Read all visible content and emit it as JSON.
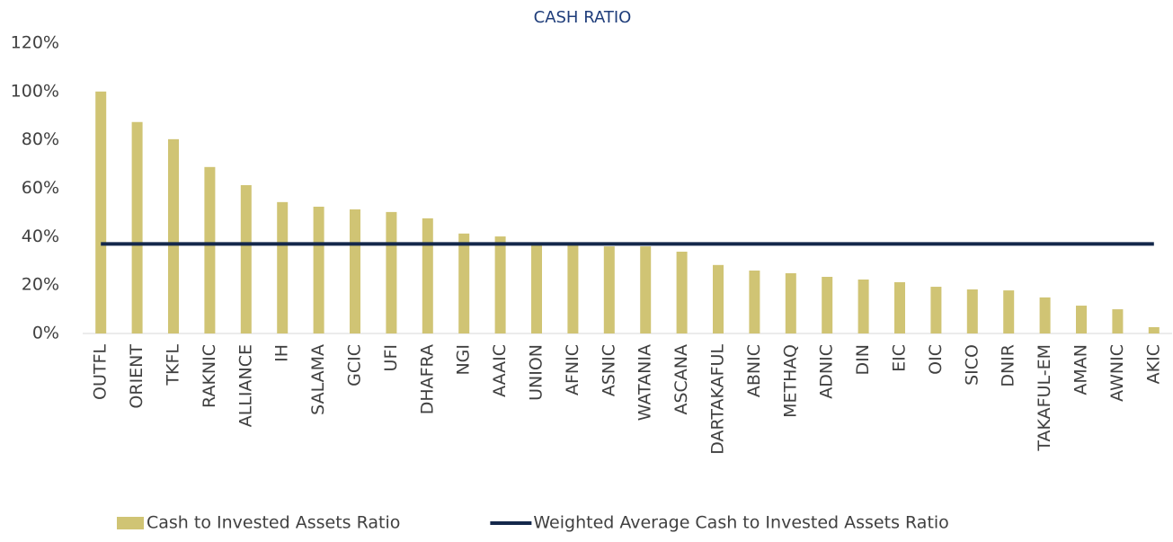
{
  "chart_data": {
    "type": "bar",
    "title": "CASH RATIO",
    "categories": [
      "OUTFL",
      "ORIENT",
      "TKFL",
      "RAKNIC",
      "ALLIANCE",
      "IH",
      "SALAMA",
      "GCIC",
      "UFI",
      "DHAFRA",
      "NGI",
      "AAAIC",
      "UNION",
      "AFNIC",
      "ASNIC",
      "WATANIA",
      "ASCANA",
      "DARTAKAFUL",
      "ABNIC",
      "METHAQ",
      "ADNIC",
      "DIN",
      "EIC",
      "OIC",
      "SICO",
      "DNIR",
      "TAKAFUL-EM",
      "AMAN",
      "AWNIC",
      "AKIC"
    ],
    "series": [
      {
        "name": "Cash to Invested Assets Ratio",
        "type": "bar",
        "color": "#d0c474",
        "values": [
          100,
          87.4,
          80.3,
          68.8,
          61.3,
          54.3,
          52.4,
          51.3,
          50.2,
          47.6,
          41.3,
          40.1,
          37,
          36.5,
          36,
          36,
          33.8,
          28.3,
          26,
          24.9,
          23.4,
          22.3,
          21.2,
          19.3,
          18.2,
          17.8,
          14.9,
          11.5,
          10,
          2.6
        ]
      },
      {
        "name": "Weighted Average Cash to Invested Assets Ratio",
        "type": "line",
        "color": "#14284b",
        "values": [
          37,
          37,
          37,
          37,
          37,
          37,
          37,
          37,
          37,
          37,
          37,
          37,
          37,
          37,
          37,
          37,
          37,
          37,
          37,
          37,
          37,
          37,
          37,
          37,
          37,
          37,
          37,
          37,
          37,
          37
        ]
      }
    ],
    "ylim": [
      0,
      120
    ],
    "yticks": [
      {
        "value": 0,
        "label": "0%"
      },
      {
        "value": 20,
        "label": "20%"
      },
      {
        "value": 40,
        "label": "40%"
      },
      {
        "value": 60,
        "label": "60%"
      },
      {
        "value": 80,
        "label": "80%"
      },
      {
        "value": 100,
        "label": "100%"
      },
      {
        "value": 120,
        "label": "120%"
      }
    ],
    "grid": false
  }
}
